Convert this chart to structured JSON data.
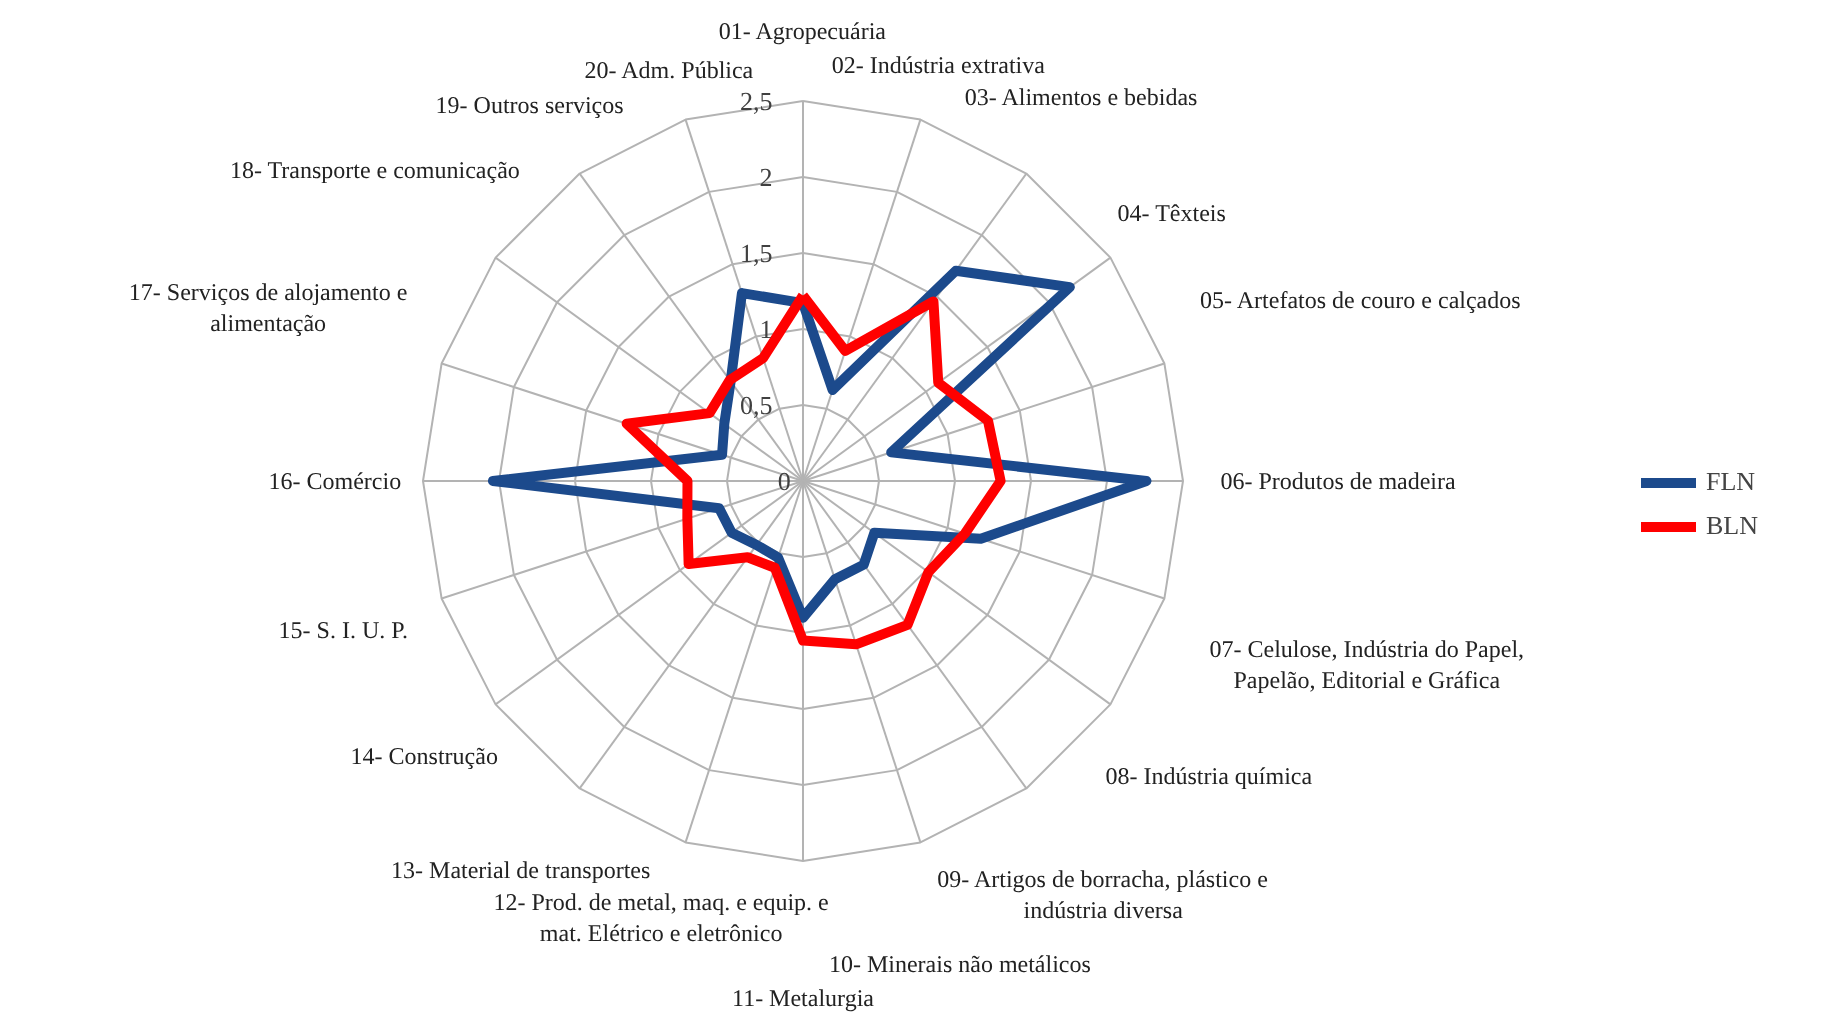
{
  "chart_data": {
    "type": "radar",
    "categories": [
      "01- Agropecuária",
      "02- Indústria extrativa",
      "03- Alimentos e bebidas",
      "04- Têxteis",
      "05- Artefatos de couro e calçados",
      "06- Produtos de madeira",
      "07- Celulose, Indústria do Papel,\nPapelão, Editorial e Gráfica",
      "08- Indústria química",
      "09- Artigos de borracha, plástico e\nindústria diversa",
      "10- Minerais não metálicos",
      "11- Metalurgia",
      "12- Prod. de metal, maq. e equip. e\nmat. Elétrico e eletrônico",
      "13- Material de transportes",
      "14- Construção",
      "15- S. I. U. P.",
      "16- Comércio",
      "17- Serviços de alojamento e\nalimentação",
      "18- Transporte e comunicação",
      "19- Outros serviços",
      "20- Adm. Pública"
    ],
    "series": [
      {
        "name": "FLN",
        "color": "#1c4a8c",
        "values": [
          1.17,
          0.63,
          1.71,
          2.17,
          0.61,
          2.26,
          1.23,
          0.58,
          0.68,
          0.68,
          0.9,
          0.53,
          0.52,
          0.58,
          0.58,
          2.04,
          0.56,
          0.64,
          0.81,
          1.3
        ]
      },
      {
        "name": "BLN",
        "color": "#ff0000",
        "values": [
          1.22,
          0.9,
          1.46,
          1.1,
          1.28,
          1.3,
          1.12,
          1.02,
          1.17,
          1.13,
          1.05,
          0.6,
          0.62,
          0.93,
          0.8,
          0.76,
          1.22,
          0.76,
          0.82,
          0.85
        ]
      }
    ],
    "ylim": [
      0,
      2.5
    ],
    "yticks": [
      0,
      {
        "value": 0.5,
        "label": "0,5"
      },
      1,
      {
        "value": 1.5,
        "label": "1,5"
      },
      2,
      {
        "value": 2.5,
        "label": "2,5"
      }
    ],
    "grid": true,
    "legend": "right",
    "marker": "none",
    "line_style": "solid"
  }
}
